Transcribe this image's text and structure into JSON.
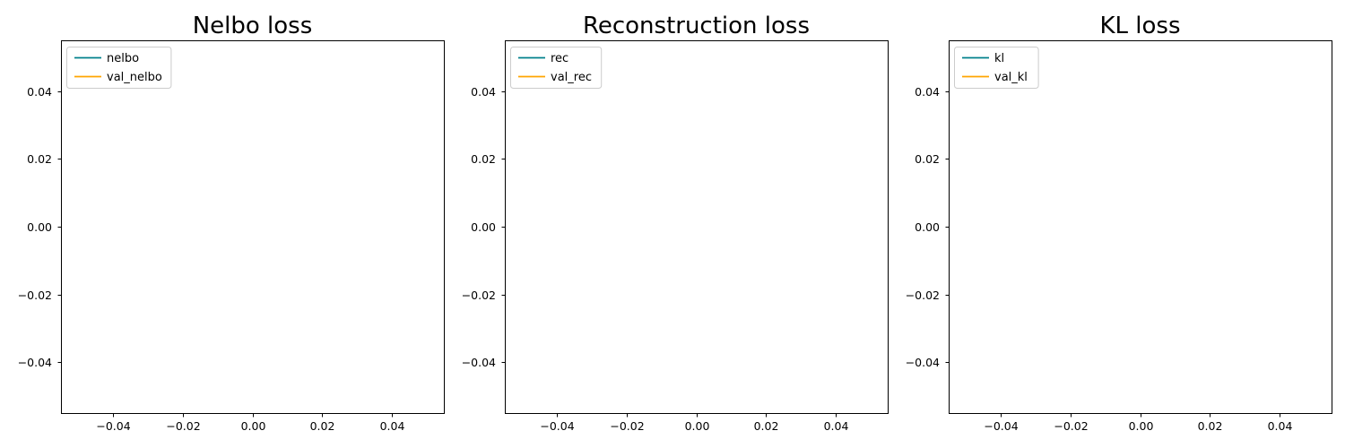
{
  "chart_data": [
    {
      "type": "line",
      "title": "Nelbo loss",
      "xlabel": "",
      "ylabel": "",
      "xlim": [
        -0.055,
        0.055
      ],
      "ylim": [
        -0.055,
        0.055
      ],
      "x_ticks": [
        -0.04,
        -0.02,
        0.0,
        0.02,
        0.04
      ],
      "x_tick_labels": [
        "−0.04",
        "−0.02",
        "0.00",
        "0.02",
        "0.04"
      ],
      "y_ticks": [
        0.04,
        0.02,
        0.0,
        -0.02,
        -0.04
      ],
      "y_tick_labels": [
        "0.04",
        "0.02",
        "0.00",
        "−0.02",
        "−0.04"
      ],
      "grid": false,
      "legend_position": "top-left",
      "series": [
        {
          "name": "nelbo",
          "color": "#00808b",
          "x": [],
          "y": []
        },
        {
          "name": "val_nelbo",
          "color": "#ffa500",
          "x": [],
          "y": []
        }
      ]
    },
    {
      "type": "line",
      "title": "Reconstruction loss",
      "xlabel": "",
      "ylabel": "",
      "xlim": [
        -0.055,
        0.055
      ],
      "ylim": [
        -0.055,
        0.055
      ],
      "x_ticks": [
        -0.04,
        -0.02,
        0.0,
        0.02,
        0.04
      ],
      "x_tick_labels": [
        "−0.04",
        "−0.02",
        "0.00",
        "0.02",
        "0.04"
      ],
      "y_ticks": [
        0.04,
        0.02,
        0.0,
        -0.02,
        -0.04
      ],
      "y_tick_labels": [
        "0.04",
        "0.02",
        "0.00",
        "−0.02",
        "−0.04"
      ],
      "grid": false,
      "legend_position": "top-left",
      "series": [
        {
          "name": "rec",
          "color": "#00808b",
          "x": [],
          "y": []
        },
        {
          "name": "val_rec",
          "color": "#ffa500",
          "x": [],
          "y": []
        }
      ]
    },
    {
      "type": "line",
      "title": "KL loss",
      "xlabel": "",
      "ylabel": "",
      "xlim": [
        -0.055,
        0.055
      ],
      "ylim": [
        -0.055,
        0.055
      ],
      "x_ticks": [
        -0.04,
        -0.02,
        0.0,
        0.02,
        0.04
      ],
      "x_tick_labels": [
        "−0.04",
        "−0.02",
        "0.00",
        "0.02",
        "0.04"
      ],
      "y_ticks": [
        0.04,
        0.02,
        0.0,
        -0.02,
        -0.04
      ],
      "y_tick_labels": [
        "0.04",
        "0.02",
        "0.00",
        "−0.02",
        "−0.04"
      ],
      "grid": false,
      "legend_position": "top-left",
      "series": [
        {
          "name": "kl",
          "color": "#00808b",
          "x": [],
          "y": []
        },
        {
          "name": "val_kl",
          "color": "#ffa500",
          "x": [],
          "y": []
        }
      ]
    }
  ]
}
